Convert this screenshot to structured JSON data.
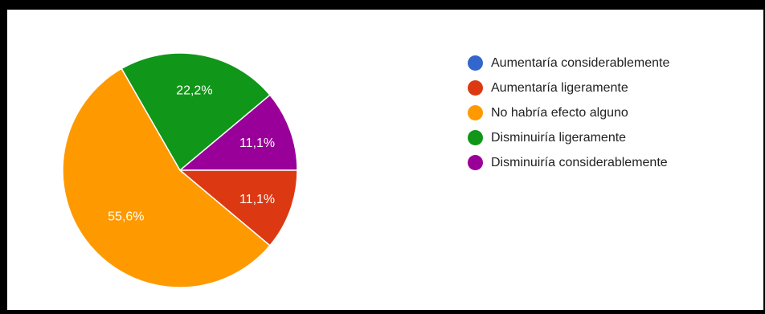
{
  "chart_data": {
    "type": "pie",
    "categories": [
      "Aumentaría considerablemente",
      "Aumentaría ligeramente",
      "No habría efecto alguno",
      "Disminuiría ligeramente",
      "Disminuiría considerablemente"
    ],
    "values": [
      0,
      11.1,
      55.6,
      22.2,
      11.1
    ],
    "data_labels": [
      "",
      "11,1%",
      "55,6%",
      "22,2%",
      "11,1%"
    ],
    "colors": [
      "#3366cc",
      "#dc3912",
      "#ff9900",
      "#109618",
      "#990099"
    ],
    "legend_position": "right",
    "title": ""
  }
}
